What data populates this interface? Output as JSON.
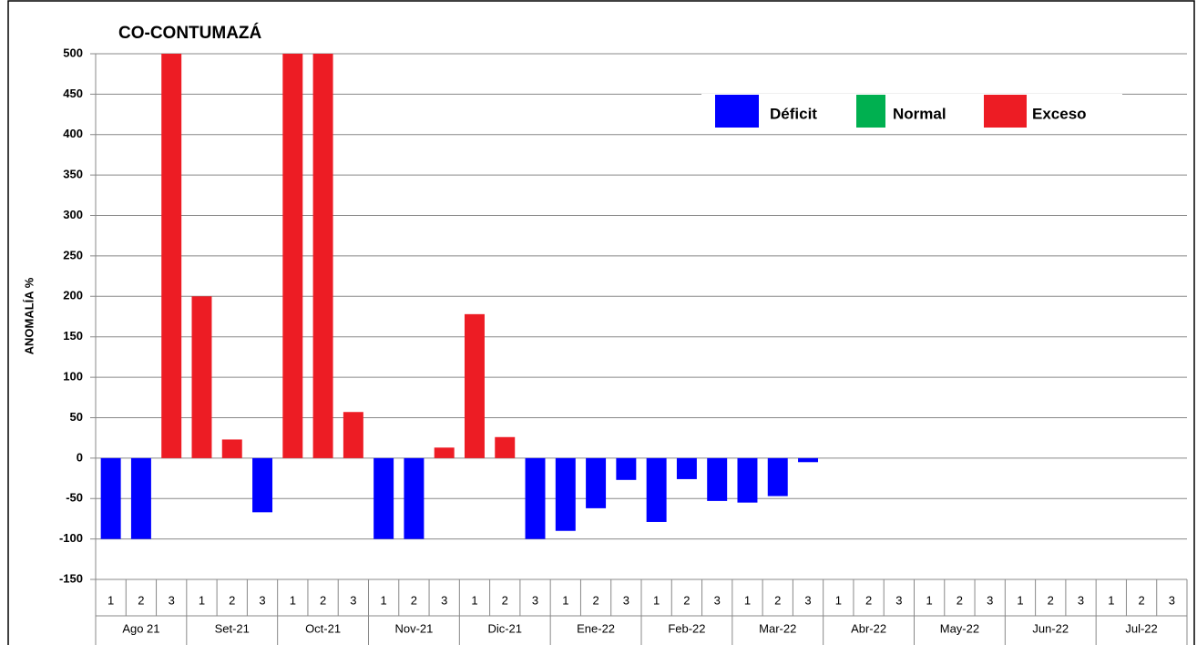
{
  "chart_data": {
    "type": "bar",
    "title": "CO-CONTUMAZÁ",
    "y_label": "ANOMALÍA %",
    "categories": [
      "1",
      "2",
      "3",
      "1",
      "2",
      "3",
      "1",
      "2",
      "3",
      "1",
      "2",
      "3",
      "1",
      "2",
      "3",
      "1",
      "2",
      "3",
      "1",
      "2",
      "3",
      "1",
      "2",
      "3",
      "1",
      "2",
      "3",
      "1",
      "2",
      "3",
      "1",
      "2",
      "3",
      "1",
      "2",
      "3"
    ],
    "groups": [
      "Ago 21",
      "Set-21",
      "Oct-21",
      "Nov-21",
      "Dic-21",
      "Ene-22",
      "Feb-22",
      "Mar-22",
      "Abr-22",
      "May-22",
      "Jun-22",
      "Jul-22"
    ],
    "series": [
      {
        "name": "Déficit",
        "color": "#0000ff",
        "values": [
          -100,
          -100,
          null,
          null,
          null,
          -67,
          null,
          null,
          null,
          -100,
          -100,
          null,
          null,
          null,
          -100,
          -90,
          -62,
          -27,
          -79,
          -26,
          -53,
          -55,
          -47,
          -5,
          null,
          null,
          null,
          null,
          null,
          null,
          null,
          null,
          null,
          null,
          null,
          null
        ]
      },
      {
        "name": "Normal",
        "color": "#00b050",
        "values": [
          null,
          null,
          null,
          null,
          null,
          null,
          null,
          null,
          null,
          null,
          null,
          null,
          null,
          null,
          null,
          null,
          null,
          null,
          null,
          null,
          null,
          null,
          null,
          null,
          null,
          null,
          null,
          null,
          null,
          null,
          null,
          null,
          null,
          null,
          null,
          null
        ]
      },
      {
        "name": "Exceso",
        "color": "#ed1c24",
        "values": [
          null,
          null,
          500,
          200,
          23,
          null,
          500,
          500,
          57,
          null,
          null,
          13,
          178,
          26,
          null,
          null,
          null,
          null,
          null,
          null,
          null,
          null,
          null,
          null,
          null,
          null,
          null,
          null,
          null,
          null,
          null,
          null,
          null,
          null,
          null,
          null
        ]
      }
    ],
    "ylim": [
      -150,
      500
    ],
    "yticks": [
      -150,
      -100,
      -50,
      0,
      50,
      100,
      150,
      200,
      250,
      300,
      350,
      400,
      450,
      500
    ],
    "grid": true
  }
}
